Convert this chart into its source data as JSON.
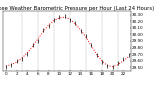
{
  "title": "Barometric Pressure per Hour (Last 24 Hours)",
  "left_label": "Milwaukee Weather",
  "hours": [
    0,
    1,
    2,
    3,
    4,
    5,
    6,
    7,
    8,
    9,
    10,
    11,
    12,
    13,
    14,
    15,
    16,
    17,
    18,
    19,
    20,
    21,
    22,
    23
  ],
  "pressure_smooth": [
    29.52,
    29.54,
    29.58,
    29.64,
    29.72,
    29.82,
    29.93,
    30.04,
    30.14,
    30.21,
    30.25,
    30.26,
    30.23,
    30.16,
    30.07,
    29.96,
    29.83,
    29.7,
    29.6,
    29.53,
    29.51,
    29.54,
    29.6,
    29.66
  ],
  "pressure_actual": [
    29.5,
    29.53,
    29.59,
    29.62,
    29.7,
    29.84,
    29.9,
    30.06,
    30.12,
    30.22,
    30.26,
    30.28,
    30.22,
    30.18,
    30.05,
    29.97,
    29.84,
    29.69,
    29.58,
    29.52,
    29.5,
    29.56,
    29.63,
    29.69
  ],
  "ylim": [
    29.44,
    30.35
  ],
  "xlim": [
    -0.5,
    23.5
  ],
  "grid_hours": [
    3,
    6,
    9,
    12,
    15,
    18,
    21
  ],
  "bg_color": "#ffffff",
  "smooth_color": "#ff0000",
  "actual_color": "#000000",
  "title_color": "#000000",
  "title_fontsize": 3.8,
  "tick_fontsize": 3.0,
  "line_width": 0.7,
  "marker_size": 1.5,
  "yticks": [
    29.5,
    29.6,
    29.7,
    29.8,
    29.9,
    30.0,
    30.1,
    30.2,
    30.3
  ],
  "ytick_labels": [
    "29.50",
    "29.60",
    "29.70",
    "29.80",
    "29.90",
    "30.00",
    "30.10",
    "30.20",
    "30.30"
  ],
  "xtick_positions": [
    0,
    2,
    4,
    6,
    8,
    10,
    12,
    14,
    16,
    18,
    20,
    22
  ],
  "xtick_labels": [
    "0",
    "2",
    "4",
    "6",
    "8",
    "10",
    "12",
    "14",
    "16",
    "18",
    "20",
    "22"
  ]
}
